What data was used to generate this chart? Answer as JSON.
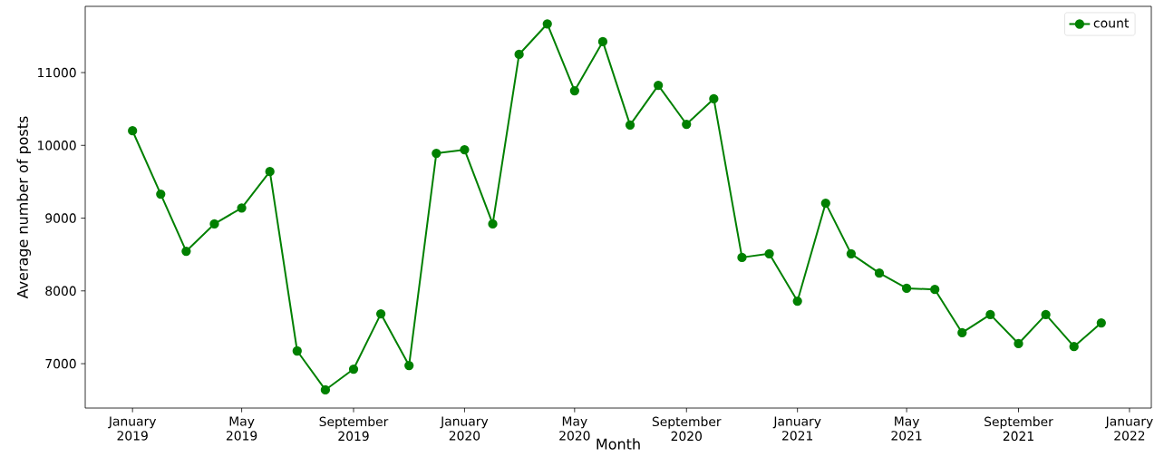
{
  "chart_data": {
    "type": "line",
    "xlabel": "Month",
    "ylabel": "Average number of posts",
    "x": [
      "2019-01",
      "2019-02",
      "2019-03",
      "2019-04",
      "2019-05",
      "2019-06",
      "2019-07",
      "2019-08",
      "2019-09",
      "2019-10",
      "2019-11",
      "2019-12",
      "2020-01",
      "2020-02",
      "2020-03",
      "2020-04",
      "2020-05",
      "2020-06",
      "2020-07",
      "2020-08",
      "2020-09",
      "2020-10",
      "2020-11",
      "2020-12",
      "2021-01",
      "2021-02",
      "2021-03",
      "2021-04",
      "2021-05",
      "2021-06",
      "2021-07",
      "2021-08",
      "2021-09",
      "2021-10",
      "2021-11",
      "2021-12"
    ],
    "series": [
      {
        "name": "count",
        "color": "#008000",
        "values": [
          10200,
          9330,
          8545,
          8920,
          9140,
          9640,
          7175,
          6640,
          6925,
          7685,
          6975,
          9890,
          9940,
          8920,
          11250,
          11670,
          10750,
          11425,
          10280,
          10825,
          10290,
          10640,
          8460,
          8510,
          7860,
          9205,
          8510,
          8245,
          8035,
          8020,
          7425,
          7675,
          7275,
          7675,
          7235,
          7560
        ]
      }
    ],
    "xlim": [
      "2018-11-10",
      "2022-01-25"
    ],
    "ylim": [
      6390,
      11910
    ],
    "xticks": [
      {
        "value": "2019-01",
        "label": "January 2019"
      },
      {
        "value": "2019-05",
        "label": "May 2019"
      },
      {
        "value": "2019-09",
        "label": "September 2019"
      },
      {
        "value": "2020-01",
        "label": "January 2020"
      },
      {
        "value": "2020-05",
        "label": "May 2020"
      },
      {
        "value": "2020-09",
        "label": "September 2020"
      },
      {
        "value": "2021-01",
        "label": "January 2021"
      },
      {
        "value": "2021-05",
        "label": "May 2021"
      },
      {
        "value": "2021-09",
        "label": "September 2021"
      },
      {
        "value": "2022-01",
        "label": "January 2022"
      }
    ],
    "yticks": [
      7000,
      8000,
      9000,
      10000,
      11000
    ],
    "legend": "top right",
    "marker": "circle",
    "line_style": "solid"
  }
}
